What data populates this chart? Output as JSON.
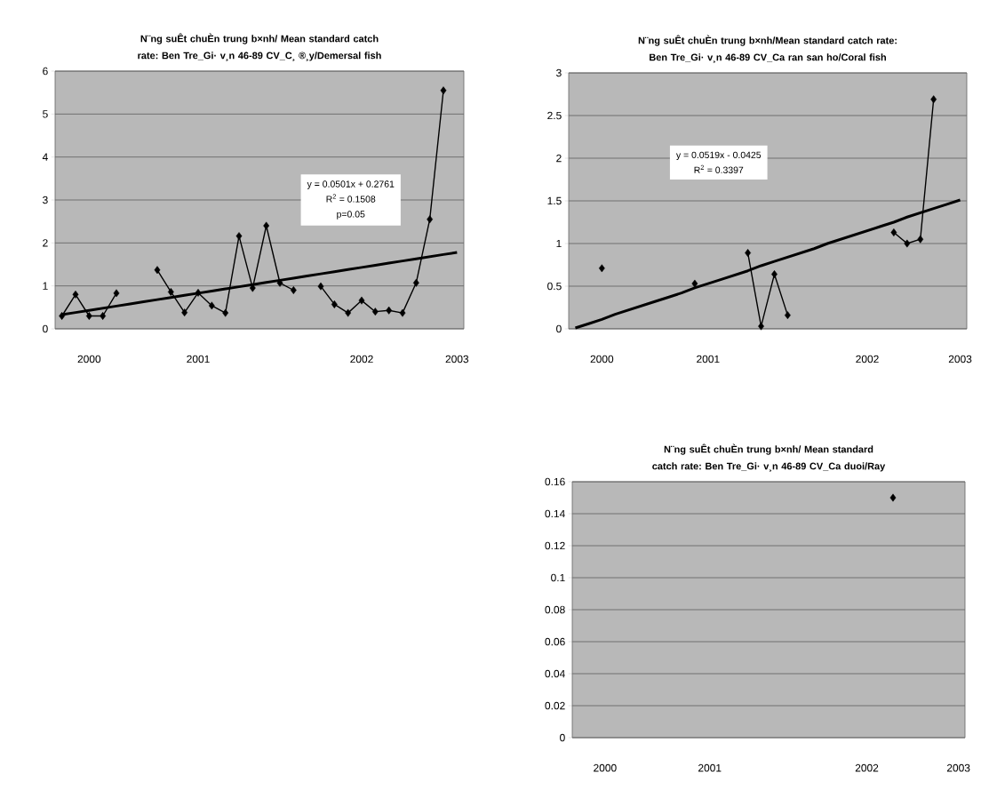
{
  "chart_data": [
    {
      "type": "line",
      "title": "N¨ng suÊt chuÈn trung b×nh/ Mean standard catch rate: Ben Tre_Gi· v¸n 46-89 CV_C¸ ®¸y/Demersal fish",
      "categories": [
        null,
        null,
        "2000",
        null,
        null,
        null,
        null,
        null,
        null,
        null,
        "2001",
        null,
        null,
        null,
        null,
        null,
        null,
        null,
        null,
        null,
        null,
        null,
        "2002",
        null,
        null,
        null,
        null,
        null,
        null,
        "2003"
      ],
      "series": [
        {
          "color": "#000000",
          "values": [
            0.3,
            0.8,
            0.3,
            0.3,
            0.83,
            null,
            null,
            1.37,
            0.86,
            0.38,
            0.84,
            0.54,
            0.37,
            2.16,
            0.95,
            2.4,
            1.07,
            0.9,
            null,
            0.99,
            0.57,
            0.37,
            0.66,
            0.4,
            0.43,
            0.37,
            1.07,
            2.55,
            5.55,
            null
          ]
        },
        {
          "type": "line",
          "color": "#000000",
          "marker": "none",
          "values": [
            0.33,
            0.38,
            0.43,
            0.48,
            0.53,
            0.58,
            0.63,
            0.68,
            0.73,
            0.78,
            0.83,
            0.88,
            0.93,
            0.98,
            1.03,
            1.08,
            1.13,
            1.18,
            1.23,
            1.28,
            1.33,
            1.38,
            1.43,
            1.48,
            1.53,
            1.58,
            1.63,
            1.68,
            1.73,
            1.78
          ]
        }
      ],
      "ylim": [
        0,
        6
      ],
      "yticks": [
        0,
        1,
        2,
        3,
        4,
        5,
        6
      ],
      "annotations": [
        "y = 0.0501x + 0.2761",
        "R$^{2}$ = 0.1508",
        "p=0.05"
      ],
      "grid": "y",
      "marker": "diamond"
    },
    {
      "type": "line",
      "title": "N¨ng suÊt chuÈn trung b×nh/Mean standard catch rate: Ben Tre_Gi· v¸n 46-89 CV_Ca ran san ho/Coral fish",
      "categories": [
        null,
        null,
        "2000",
        null,
        null,
        null,
        null,
        null,
        null,
        null,
        "2001",
        null,
        null,
        null,
        null,
        null,
        null,
        null,
        null,
        null,
        null,
        null,
        "2002",
        null,
        null,
        null,
        null,
        null,
        null,
        "2003"
      ],
      "series": [
        {
          "color": "#000000",
          "values": [
            null,
            null,
            0.71,
            null,
            null,
            null,
            null,
            null,
            null,
            0.53,
            null,
            null,
            null,
            0.89,
            0.03,
            0.64,
            0.16,
            null,
            null,
            null,
            null,
            null,
            null,
            null,
            1.13,
            1.0,
            1.05,
            2.69,
            null,
            null
          ]
        },
        {
          "type": "line",
          "color": "#000000",
          "marker": "none",
          "values": [
            0.01,
            0.06,
            0.11,
            0.17,
            0.22,
            0.27,
            0.32,
            0.37,
            0.42,
            0.48,
            0.53,
            0.58,
            0.63,
            0.68,
            0.74,
            0.79,
            0.84,
            0.89,
            0.94,
            1.0,
            1.05,
            1.1,
            1.15,
            1.2,
            1.25,
            1.31,
            1.36,
            1.41,
            1.46,
            1.51
          ]
        }
      ],
      "ylim": [
        0,
        3
      ],
      "yticks": [
        0,
        0.5,
        1,
        1.5,
        2,
        2.5,
        3
      ],
      "annotations": [
        "y = 0.0519x - 0.0425",
        "R$^{2}$ = 0.3397"
      ],
      "grid": "y",
      "marker": "diamond"
    },
    {
      "type": "line",
      "title": "N¨ng suÊt chuÈn trung b×nh/ Mean standard catch rate: Ben Tre_Gi· v¸n 46-89 CV_Ca duoi/Ray",
      "categories": [
        null,
        null,
        "2000",
        null,
        null,
        null,
        null,
        null,
        null,
        null,
        "2001",
        null,
        null,
        null,
        null,
        null,
        null,
        null,
        null,
        null,
        null,
        null,
        "2002",
        null,
        null,
        null,
        null,
        null,
        null,
        "2003"
      ],
      "series": [
        {
          "color": "#000000",
          "values": [
            null,
            null,
            null,
            null,
            null,
            null,
            null,
            null,
            null,
            null,
            null,
            null,
            null,
            null,
            null,
            null,
            null,
            null,
            null,
            null,
            null,
            null,
            null,
            null,
            0.15,
            null,
            null,
            null,
            null,
            null
          ]
        }
      ],
      "ylim": [
        0,
        0.16
      ],
      "yticks": [
        0,
        0.02,
        0.04,
        0.06,
        0.08,
        0.1,
        0.12,
        0.14,
        0.16
      ],
      "grid": "y",
      "marker": "diamond"
    }
  ]
}
